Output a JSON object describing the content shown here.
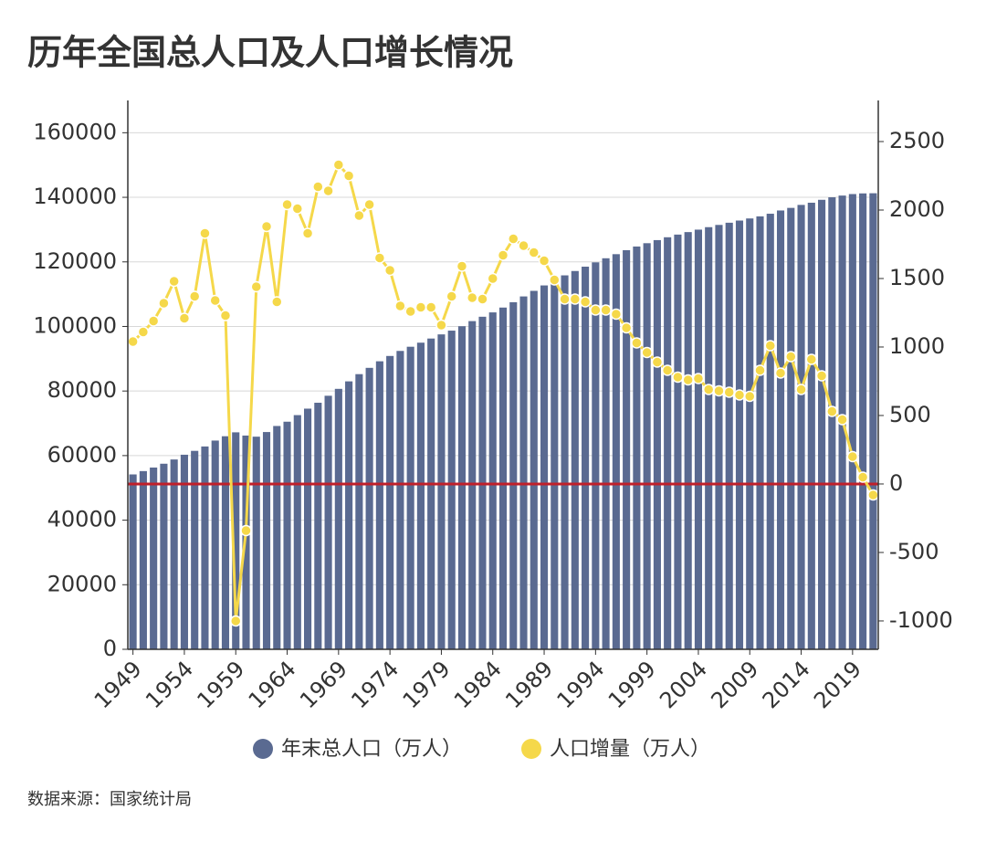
{
  "chart_data": {
    "type": "combo",
    "title": "历年全国总人口及人口增长情况",
    "source": "数据来源：国家统计局",
    "categories": [
      "1949",
      null,
      null,
      null,
      null,
      "1954",
      null,
      null,
      null,
      null,
      "1959",
      null,
      null,
      null,
      null,
      "1964",
      null,
      null,
      null,
      null,
      "1969",
      null,
      null,
      null,
      null,
      "1974",
      null,
      null,
      null,
      null,
      "1979",
      null,
      null,
      null,
      null,
      "1984",
      null,
      null,
      null,
      null,
      "1989",
      null,
      null,
      null,
      null,
      "1994",
      null,
      null,
      null,
      null,
      "1999",
      null,
      null,
      null,
      null,
      "2004",
      null,
      null,
      null,
      null,
      "2009",
      null,
      null,
      null,
      null,
      "2014",
      null,
      null,
      null,
      null,
      "2019",
      null,
      null
    ],
    "series": [
      {
        "name": "年末总人口（万人）",
        "type": "bar",
        "color": "#5a6a91",
        "values": [
          54167,
          55196,
          56300,
          57482,
          58796,
          60266,
          61465,
          62828,
          64653,
          65994,
          67207,
          66207,
          65859,
          67296,
          69172,
          70499,
          72538,
          74542,
          76368,
          78534,
          80671,
          82992,
          85229,
          87177,
          89211,
          90859,
          92420,
          93717,
          94974,
          96259,
          97542,
          98705,
          100072,
          101654,
          103008,
          104357,
          105851,
          107507,
          109300,
          111026,
          112704,
          114333,
          115823,
          117171,
          118517,
          119850,
          121121,
          122389,
          123626,
          124761,
          125786,
          126743,
          127627,
          128453,
          129227,
          129988,
          130756,
          131448,
          132129,
          132802,
          133450,
          134091,
          134916,
          135922,
          136726,
          137646,
          138326,
          139232,
          140011,
          140541,
          141008,
          141212,
          141260
        ]
      },
      {
        "name": "人口增量（万人）",
        "type": "line",
        "axis": "y2",
        "color": "#f5d84a",
        "values": [
          1040,
          1110,
          1190,
          1320,
          1480,
          1210,
          1370,
          1830,
          1340,
          1230,
          -1000,
          -340,
          1440,
          1880,
          1330,
          2040,
          2010,
          1830,
          2170,
          2140,
          2330,
          2250,
          1960,
          2040,
          1650,
          1560,
          1300,
          1260,
          1290,
          1290,
          1160,
          1370,
          1590,
          1360,
          1350,
          1500,
          1670,
          1790,
          1740,
          1690,
          1630,
          1490,
          1350,
          1350,
          1330,
          1270,
          1270,
          1240,
          1140,
          1030,
          960,
          890,
          830,
          780,
          760,
          770,
          690,
          680,
          670,
          650,
          640,
          830,
          1010,
          810,
          930,
          690,
          910,
          790,
          530,
          470,
          200,
          50,
          -80
        ]
      }
    ],
    "ylim": [
      0,
      170000
    ],
    "yticks": [
      0,
      20000,
      40000,
      60000,
      80000,
      100000,
      120000,
      140000,
      160000
    ],
    "y2lim": [
      -1207,
      2800
    ],
    "y2ticks": [
      -1000,
      -500,
      0,
      500,
      1000,
      1500,
      2000,
      2500
    ],
    "reference_line": {
      "value": 0,
      "axis": "y2",
      "color": "#c0202a"
    },
    "grid": true
  }
}
